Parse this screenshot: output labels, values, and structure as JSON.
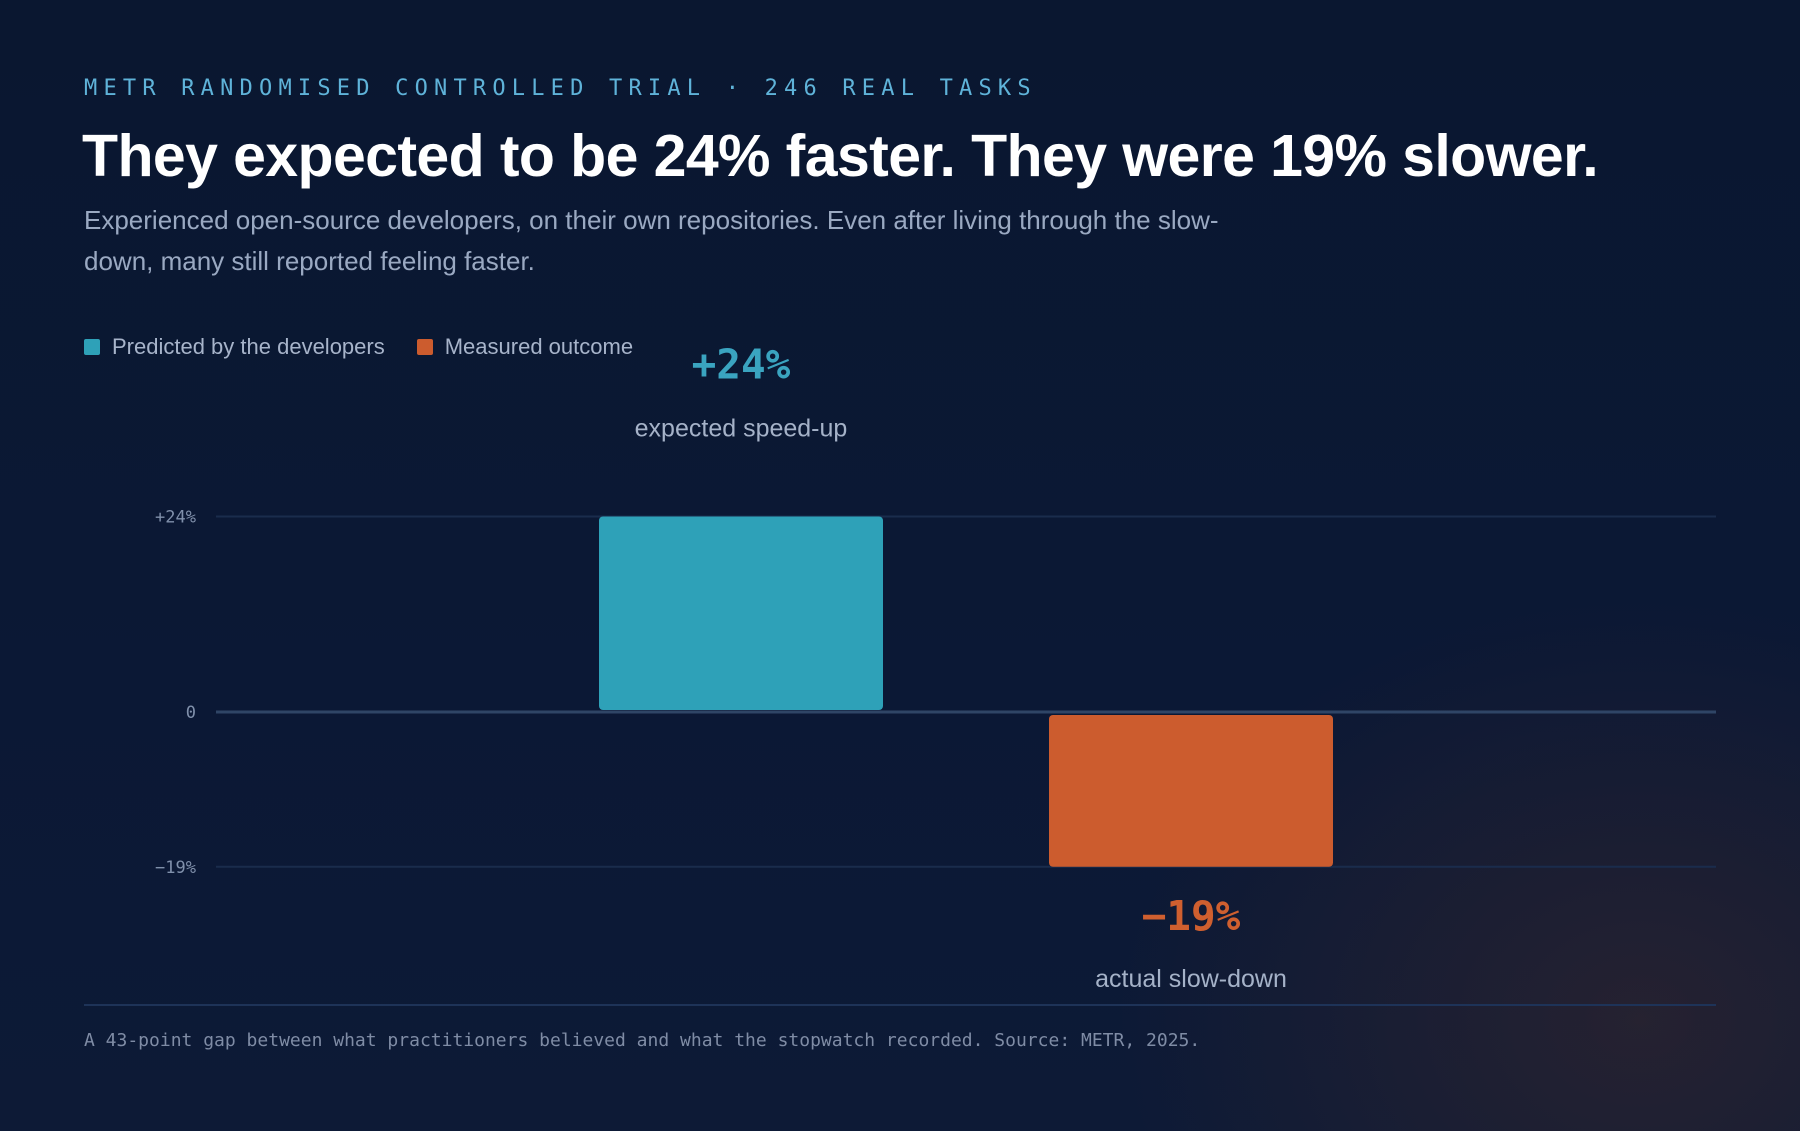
{
  "header": {
    "eyebrow": "METR RANDOMISED CONTROLLED TRIAL · 246 REAL TASKS",
    "title": "They expected to be 24% faster. They were 19% slower.",
    "subtitle": "Experienced open-source developers, on their own repositories. Even after living through the slow-down, many still reported feeling faster."
  },
  "legend": {
    "items": [
      {
        "label": "Predicted by the developers",
        "color": "#2ea1b8"
      },
      {
        "label": "Measured outcome",
        "color": "#cc5c2e"
      }
    ]
  },
  "chart_data": {
    "type": "bar",
    "title": "",
    "xlabel": "",
    "ylabel": "",
    "ylim": [
      -19,
      24
    ],
    "yticks": [
      {
        "value": 24,
        "label": "+24%"
      },
      {
        "value": 0,
        "label": "0"
      },
      {
        "value": -19,
        "label": "−19%"
      }
    ],
    "grid": true,
    "legend_position": "top-left",
    "series": [
      {
        "name": "Predicted by the developers",
        "value": 24,
        "value_label": "+24%",
        "caption": "expected speed-up",
        "color": "#2ea1b8",
        "label_color": "#3aa4c0"
      },
      {
        "name": "Measured outcome",
        "value": -19,
        "value_label": "−19%",
        "caption": "actual slow-down",
        "color": "#cc5c2e",
        "label_color": "#cf5f2f"
      }
    ]
  },
  "footer": {
    "note": "A 43-point gap between what practitioners believed and what the stopwatch recorded. Source: METR, 2025."
  }
}
